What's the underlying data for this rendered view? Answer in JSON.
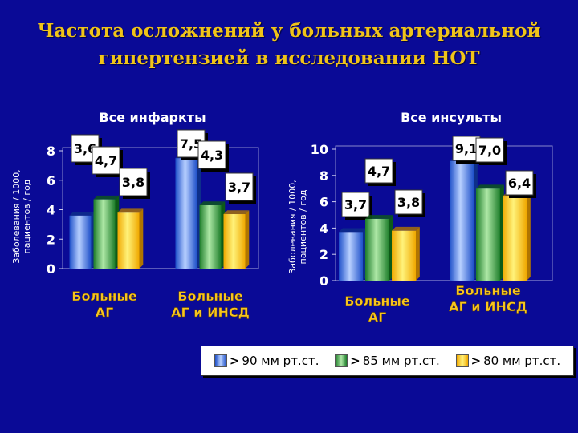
{
  "title_line1": "Частота осложнений у больных артериальной",
  "title_line2": "гипертензией в исследовании НОТ",
  "colors": {
    "s1": "#3a78e8",
    "s2": "#3fae3f",
    "s3": "#ffd200"
  },
  "legend": [
    {
      "symbol": ">",
      "text": "90 мм рт.ст."
    },
    {
      "symbol": ">",
      "text": "85 мм рт.ст."
    },
    {
      "symbol": ">",
      "text": "80 мм рт.ст."
    }
  ],
  "chart_data": [
    {
      "type": "bar",
      "subtitle": "Все инфаркты",
      "ylabel": "Заболевания / 1000, пациентов / год",
      "ylim": [
        0,
        8
      ],
      "yticks": [
        0,
        2,
        4,
        6,
        8
      ],
      "yticklabels": [
        "0",
        "2",
        "4",
        "6",
        "8"
      ],
      "categories": [
        "Больные АГ",
        "Больные АГ и ИНСД"
      ],
      "series": [
        {
          "legend": "> 90 мм рт.ст.",
          "values": [
            3.6,
            7.5
          ],
          "labels": [
            "3,6",
            "7,5"
          ]
        },
        {
          "legend": "> 85 мм рт.ст.",
          "values": [
            4.7,
            4.3
          ],
          "labels": [
            "4,7",
            "4,3"
          ]
        },
        {
          "legend": "> 80 мм рт.ст.",
          "values": [
            3.8,
            3.7
          ],
          "labels": [
            "3,8",
            "3,7"
          ]
        }
      ]
    },
    {
      "type": "bar",
      "subtitle": "Все инсульты",
      "ylabel": "Заболевания / 1000, пациентов / год",
      "ylim": [
        0,
        10
      ],
      "yticks": [
        0,
        2,
        4,
        6,
        8,
        10
      ],
      "yticklabels": [
        "0",
        "2",
        "4",
        "6",
        "8",
        "10"
      ],
      "categories": [
        "Больные АГ",
        "Больные АГ и ИНСД"
      ],
      "series": [
        {
          "legend": "> 90 мм рт.ст.",
          "values": [
            3.7,
            9.1
          ],
          "labels": [
            "3,7",
            "9,1"
          ]
        },
        {
          "legend": "> 85 мм рт.ст.",
          "values": [
            4.7,
            7.0
          ],
          "labels": [
            "4,7",
            "7,0"
          ]
        },
        {
          "legend": "> 80 мм рт.ст.",
          "values": [
            3.8,
            6.4
          ],
          "labels": [
            "3,8",
            "6,4"
          ]
        }
      ]
    }
  ]
}
